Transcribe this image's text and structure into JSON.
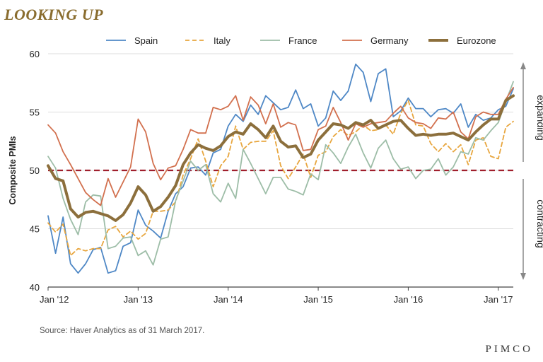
{
  "title": "LOOKING UP",
  "source": "Source: Haver Analytics as of 31 March 2017.",
  "brand": "PIMCO",
  "chart_data": {
    "type": "line",
    "title": "LOOKING UP",
    "ylabel": "Composite PMIs",
    "xlabel": "",
    "ylim": [
      40,
      60
    ],
    "xlim": [
      "2012-01",
      "2017-03"
    ],
    "yticks": [
      40,
      45,
      50,
      55,
      60
    ],
    "x_tick_labels": [
      "Jan '12",
      "Jan '13",
      "Jan '14",
      "Jan '15",
      "Jan '16",
      "Jan '17"
    ],
    "grid": "horizontal",
    "legend_position": "top",
    "reference_line": {
      "y": 50,
      "color": "#a01f2c",
      "style": "dashed"
    },
    "annotations": {
      "upper": "expanding",
      "lower": "contracting"
    },
    "x": [
      "2012-01",
      "2012-02",
      "2012-03",
      "2012-04",
      "2012-05",
      "2012-06",
      "2012-07",
      "2012-08",
      "2012-09",
      "2012-10",
      "2012-11",
      "2012-12",
      "2013-01",
      "2013-02",
      "2013-03",
      "2013-04",
      "2013-05",
      "2013-06",
      "2013-07",
      "2013-08",
      "2013-09",
      "2013-10",
      "2013-11",
      "2013-12",
      "2014-01",
      "2014-02",
      "2014-03",
      "2014-04",
      "2014-05",
      "2014-06",
      "2014-07",
      "2014-08",
      "2014-09",
      "2014-10",
      "2014-11",
      "2014-12",
      "2015-01",
      "2015-02",
      "2015-03",
      "2015-04",
      "2015-05",
      "2015-06",
      "2015-07",
      "2015-08",
      "2015-09",
      "2015-10",
      "2015-11",
      "2015-12",
      "2016-01",
      "2016-02",
      "2016-03",
      "2016-04",
      "2016-05",
      "2016-06",
      "2016-07",
      "2016-08",
      "2016-09",
      "2016-10",
      "2016-11",
      "2016-12",
      "2017-01",
      "2017-02",
      "2017-03"
    ],
    "series": [
      {
        "name": "Spain",
        "color": "#4f88c6",
        "style": "solid",
        "width": 1.8,
        "values": [
          46.1,
          42.9,
          46.0,
          42.0,
          41.2,
          42.0,
          43.2,
          43.4,
          41.2,
          41.4,
          43.5,
          43.8,
          46.6,
          45.3,
          44.8,
          44.2,
          46.5,
          48.0,
          48.6,
          50.2,
          50.3,
          49.6,
          51.5,
          51.8,
          53.8,
          54.8,
          54.2,
          55.6,
          54.8,
          56.4,
          55.8,
          55.2,
          55.4,
          56.9,
          55.3,
          55.7,
          53.8,
          54.5,
          56.8,
          56.0,
          56.8,
          59.1,
          58.4,
          55.9,
          58.3,
          58.7,
          54.6,
          55.1,
          56.2,
          55.3,
          55.3,
          54.6,
          55.2,
          55.3,
          54.9,
          55.7,
          53.7,
          54.8,
          54.3,
          54.5,
          55.2,
          55.5,
          57.0
        ]
      },
      {
        "name": "Italy",
        "color": "#e8a63e",
        "style": "dashed",
        "width": 1.8,
        "values": [
          45.5,
          44.7,
          45.4,
          42.7,
          43.3,
          43.1,
          43.3,
          43.3,
          44.9,
          45.2,
          44.3,
          44.8,
          44.1,
          44.6,
          46.5,
          46.5,
          46.6,
          47.3,
          49.6,
          51.0,
          52.7,
          50.8,
          48.6,
          50.4,
          51.2,
          53.8,
          51.8,
          52.4,
          52.5,
          52.5,
          53.4,
          50.4,
          49.3,
          50.3,
          51.4,
          49.4,
          51.3,
          51.6,
          52.9,
          53.5,
          53.0,
          53.3,
          53.9,
          53.4,
          53.5,
          53.9,
          53.1,
          54.9,
          56.0,
          53.9,
          53.8,
          52.3,
          51.6,
          52.3,
          51.6,
          52.2,
          50.5,
          52.6,
          52.8,
          51.2,
          51.0,
          53.7,
          54.2
        ]
      },
      {
        "name": "France",
        "color": "#9dbda7",
        "style": "solid",
        "width": 1.8,
        "values": [
          51.2,
          50.2,
          47.6,
          45.8,
          44.5,
          47.3,
          47.9,
          47.8,
          43.3,
          43.5,
          44.2,
          44.3,
          42.7,
          43.1,
          41.9,
          44.1,
          44.3,
          47.4,
          49.1,
          50.8,
          50.0,
          50.5,
          48.0,
          47.3,
          48.9,
          47.6,
          51.8,
          50.6,
          49.3,
          48.0,
          49.4,
          49.4,
          48.4,
          48.2,
          47.9,
          49.7,
          49.2,
          52.2,
          51.5,
          50.6,
          52.0,
          53.1,
          51.5,
          50.2,
          51.9,
          52.6,
          51.0,
          50.1,
          50.3,
          49.3,
          50.0,
          50.1,
          51.0,
          49.6,
          50.3,
          51.6,
          51.4,
          52.8,
          52.6,
          53.4,
          54.1,
          55.9,
          57.6
        ]
      },
      {
        "name": "Germany",
        "color": "#d2704e",
        "style": "solid",
        "width": 1.8,
        "values": [
          53.9,
          53.2,
          51.6,
          50.5,
          49.3,
          48.1,
          47.5,
          47.0,
          49.3,
          47.7,
          49.0,
          50.3,
          54.4,
          53.3,
          50.6,
          49.2,
          50.2,
          50.4,
          51.8,
          53.5,
          53.2,
          53.2,
          55.4,
          55.2,
          55.5,
          56.4,
          54.3,
          56.3,
          55.6,
          54.0,
          55.7,
          53.7,
          54.1,
          53.9,
          51.7,
          51.8,
          53.5,
          53.8,
          55.4,
          54.1,
          52.6,
          54.0,
          53.7,
          54.0,
          54.1,
          54.2,
          54.9,
          55.5,
          54.5,
          54.1,
          54.0,
          53.6,
          54.5,
          54.4,
          55.0,
          53.3,
          52.7,
          54.6,
          55.0,
          54.8,
          54.8,
          56.1,
          57.1
        ]
      },
      {
        "name": "Eurozone",
        "color": "#8c6f3c",
        "style": "solid",
        "width": 4,
        "values": [
          50.4,
          49.3,
          49.1,
          46.7,
          46.0,
          46.4,
          46.5,
          46.3,
          46.1,
          45.7,
          46.2,
          47.2,
          48.6,
          47.9,
          46.5,
          46.9,
          47.7,
          48.7,
          50.5,
          51.5,
          52.2,
          51.9,
          51.7,
          52.1,
          52.9,
          53.3,
          53.1,
          54.0,
          53.5,
          52.8,
          53.8,
          52.5,
          52.0,
          52.1,
          51.1,
          51.4,
          52.6,
          53.3,
          54.0,
          53.9,
          53.6,
          54.1,
          53.9,
          54.3,
          53.6,
          53.9,
          54.2,
          54.3,
          53.6,
          53.0,
          53.1,
          53.0,
          53.1,
          53.1,
          53.2,
          52.9,
          52.6,
          53.3,
          53.9,
          54.4,
          54.4,
          56.0,
          56.4
        ]
      }
    ]
  }
}
